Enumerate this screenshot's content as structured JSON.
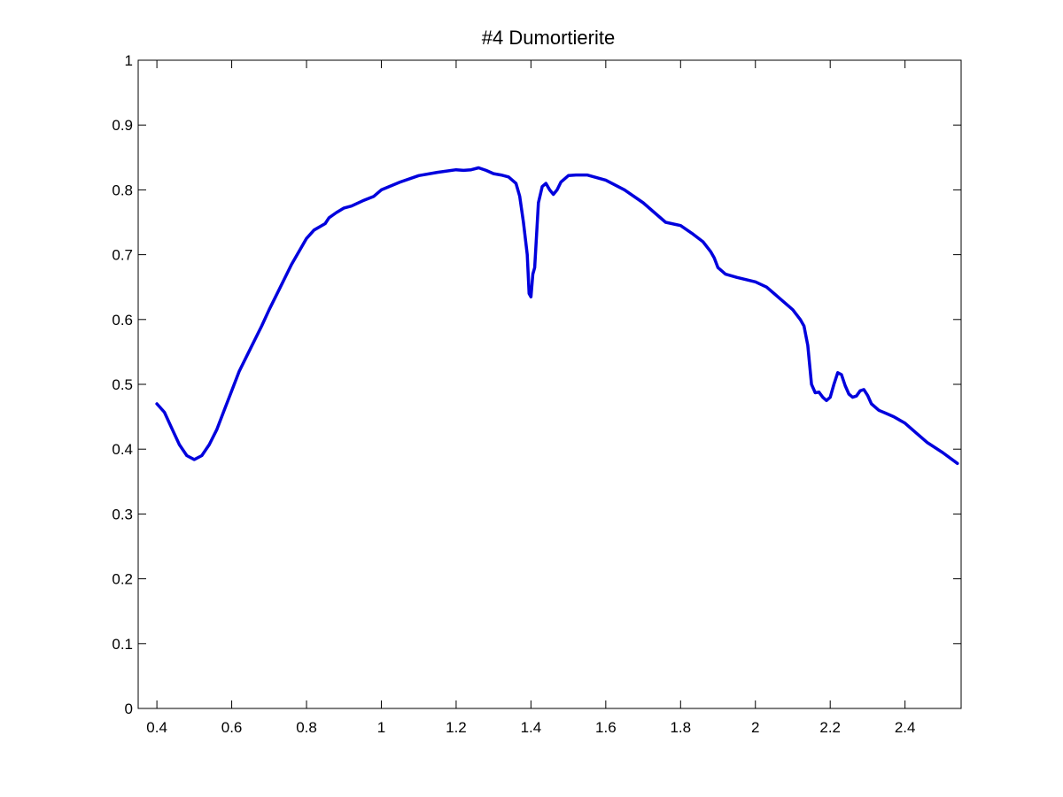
{
  "chart_data": {
    "type": "line",
    "title": "#4 Dumortierite",
    "xlabel": "",
    "ylabel": "",
    "xlim": [
      0.35,
      2.55
    ],
    "ylim": [
      0,
      1
    ],
    "grid": false,
    "x_ticks": [
      0.4,
      0.6,
      0.8,
      1,
      1.2,
      1.4,
      1.6,
      1.8,
      2,
      2.2,
      2.4
    ],
    "x_tick_labels": [
      "0.4",
      "0.6",
      "0.8",
      "1",
      "1.2",
      "1.4",
      "1.6",
      "1.8",
      "2",
      "2.2",
      "2.4"
    ],
    "y_ticks": [
      0,
      0.1,
      0.2,
      0.3,
      0.4,
      0.5,
      0.6,
      0.7,
      0.8,
      0.9,
      1
    ],
    "y_tick_labels": [
      "0",
      "0.1",
      "0.2",
      "0.3",
      "0.4",
      "0.5",
      "0.6",
      "0.7",
      "0.8",
      "0.9",
      "1"
    ],
    "series": [
      {
        "color": "#0000dd",
        "x": [
          0.4,
          0.42,
          0.44,
          0.46,
          0.48,
          0.5,
          0.52,
          0.54,
          0.56,
          0.58,
          0.6,
          0.62,
          0.65,
          0.68,
          0.7,
          0.73,
          0.76,
          0.8,
          0.82,
          0.85,
          0.86,
          0.88,
          0.9,
          0.92,
          0.95,
          0.98,
          1.0,
          1.05,
          1.1,
          1.15,
          1.2,
          1.22,
          1.24,
          1.26,
          1.28,
          1.3,
          1.32,
          1.34,
          1.36,
          1.37,
          1.38,
          1.39,
          1.395,
          1.4,
          1.405,
          1.41,
          1.42,
          1.43,
          1.44,
          1.45,
          1.46,
          1.47,
          1.48,
          1.5,
          1.52,
          1.55,
          1.6,
          1.65,
          1.7,
          1.73,
          1.76,
          1.8,
          1.83,
          1.86,
          1.88,
          1.89,
          1.9,
          1.92,
          1.95,
          2.0,
          2.03,
          2.05,
          2.07,
          2.1,
          2.12,
          2.13,
          2.14,
          2.15,
          2.16,
          2.17,
          2.18,
          2.19,
          2.2,
          2.21,
          2.22,
          2.23,
          2.24,
          2.25,
          2.26,
          2.27,
          2.28,
          2.29,
          2.3,
          2.31,
          2.33,
          2.35,
          2.37,
          2.4,
          2.43,
          2.46,
          2.5,
          2.54
        ],
        "y": [
          0.47,
          0.457,
          0.432,
          0.407,
          0.39,
          0.384,
          0.39,
          0.407,
          0.43,
          0.46,
          0.49,
          0.52,
          0.555,
          0.59,
          0.615,
          0.65,
          0.685,
          0.725,
          0.738,
          0.748,
          0.757,
          0.765,
          0.772,
          0.775,
          0.783,
          0.79,
          0.8,
          0.812,
          0.822,
          0.827,
          0.831,
          0.83,
          0.831,
          0.834,
          0.83,
          0.825,
          0.823,
          0.82,
          0.81,
          0.79,
          0.75,
          0.7,
          0.64,
          0.635,
          0.67,
          0.68,
          0.78,
          0.805,
          0.81,
          0.8,
          0.793,
          0.8,
          0.812,
          0.822,
          0.823,
          0.823,
          0.815,
          0.8,
          0.78,
          0.765,
          0.75,
          0.745,
          0.733,
          0.72,
          0.705,
          0.695,
          0.68,
          0.67,
          0.665,
          0.658,
          0.65,
          0.64,
          0.63,
          0.615,
          0.6,
          0.59,
          0.56,
          0.5,
          0.487,
          0.488,
          0.48,
          0.475,
          0.48,
          0.5,
          0.518,
          0.515,
          0.498,
          0.485,
          0.48,
          0.482,
          0.49,
          0.492,
          0.483,
          0.47,
          0.46,
          0.455,
          0.45,
          0.44,
          0.425,
          0.41,
          0.395,
          0.378
        ]
      }
    ]
  }
}
